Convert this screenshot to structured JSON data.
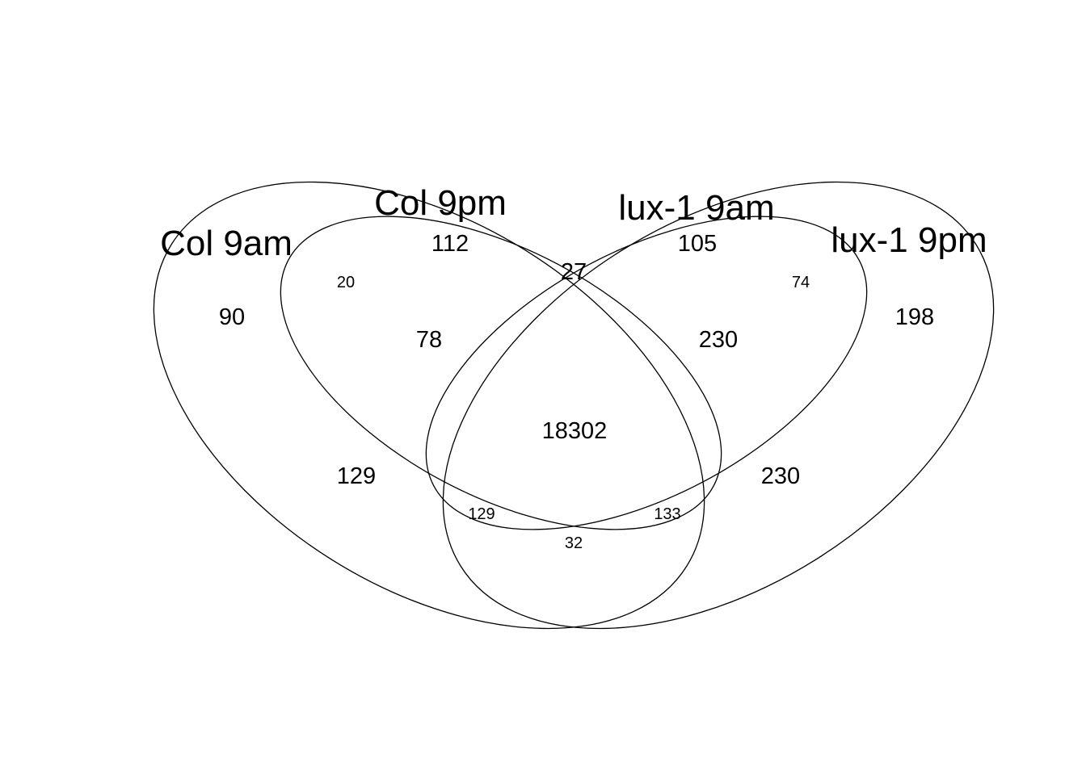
{
  "sets": [
    {
      "name": "Col 9am"
    },
    {
      "name": "Col 9pm"
    },
    {
      "name": "lux-1 9am"
    },
    {
      "name": "lux-1 9pm"
    }
  ],
  "regions": {
    "col9am_only": "90",
    "col9pm_only": "112",
    "lux9am_only": "105",
    "lux9pm_only": "198",
    "col9am_col9pm": "20",
    "col9pm_lux9am": "27",
    "lux9am_lux9pm": "74",
    "col9am_col9pm_lux9am": "78",
    "col9pm_lux9am_lux9pm": "230",
    "all_four": "18302",
    "col9am_lux9am": "129",
    "col9pm_lux9pm": "230",
    "col9am_lux9am_lux9pm": "129",
    "col9am_col9pm_lux9pm": "133",
    "col9am_lux9pm": "32"
  }
}
